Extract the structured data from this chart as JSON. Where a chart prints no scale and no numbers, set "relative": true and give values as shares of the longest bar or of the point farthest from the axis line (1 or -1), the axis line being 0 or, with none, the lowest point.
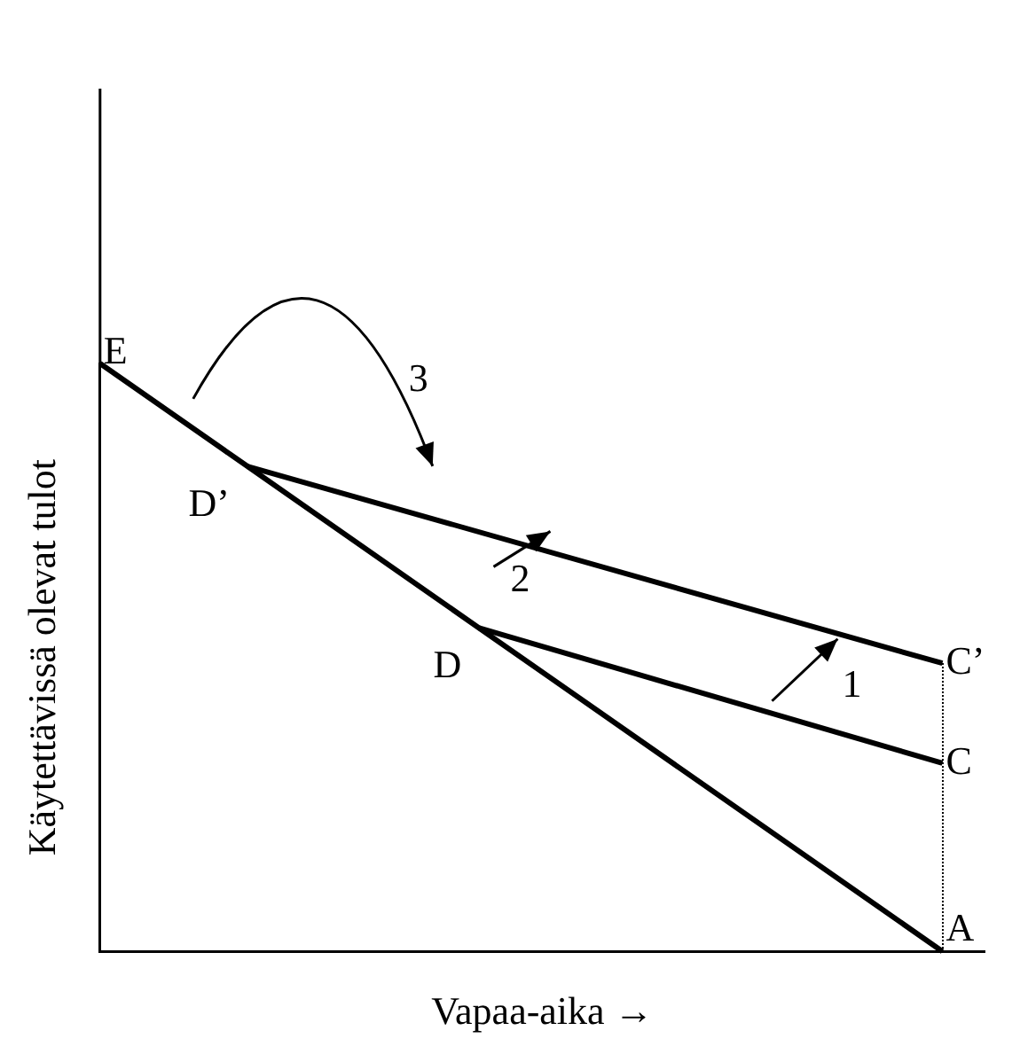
{
  "chart_data": {
    "type": "line",
    "relative": true,
    "xlabel": "Vapaa-aika →",
    "ylabel": "Käytettävissä olevat tulot",
    "tick_labels": false,
    "grid": false,
    "legend": false,
    "marker": "none",
    "categories": [
      null,
      null,
      null,
      null,
      null,
      null,
      null,
      null,
      null,
      null,
      null,
      null,
      null,
      null,
      null,
      null,
      null,
      null,
      null,
      null,
      null,
      null,
      null,
      null,
      null,
      null,
      null,
      null,
      null,
      null,
      null,
      null,
      null,
      null,
      null,
      null,
      null,
      null,
      null,
      null,
      null,
      null,
      null
    ],
    "series": [
      {
        "color": "#000000",
        "values": [
          1,
          null,
          null,
          null,
          null,
          null,
          null,
          0.825,
          null,
          null,
          null,
          null,
          null,
          null,
          null,
          null,
          null,
          null,
          0.55,
          null,
          null,
          null,
          null,
          null,
          null,
          null,
          null,
          null,
          null,
          null,
          null,
          null,
          null,
          null,
          null,
          null,
          null,
          null,
          null,
          null,
          0,
          null,
          null
        ]
      },
      {
        "color": "#000000",
        "values": [
          null,
          null,
          null,
          null,
          null,
          null,
          null,
          null,
          null,
          null,
          null,
          null,
          null,
          null,
          null,
          null,
          null,
          null,
          0.55,
          null,
          null,
          null,
          null,
          null,
          null,
          null,
          null,
          null,
          null,
          null,
          null,
          null,
          null,
          null,
          null,
          null,
          null,
          null,
          null,
          null,
          0.32,
          null,
          null
        ]
      },
      {
        "color": "#000000",
        "values": [
          null,
          null,
          null,
          null,
          null,
          null,
          null,
          0.825,
          null,
          null,
          null,
          null,
          null,
          null,
          null,
          null,
          null,
          null,
          null,
          null,
          null,
          null,
          null,
          null,
          null,
          null,
          null,
          null,
          null,
          null,
          null,
          null,
          null,
          null,
          null,
          null,
          null,
          null,
          null,
          null,
          0.49,
          null,
          null
        ]
      }
    ],
    "annotations": [
      "E",
      "D’",
      "D",
      "A",
      "C",
      "C’",
      "1",
      "2",
      "3"
    ]
  }
}
